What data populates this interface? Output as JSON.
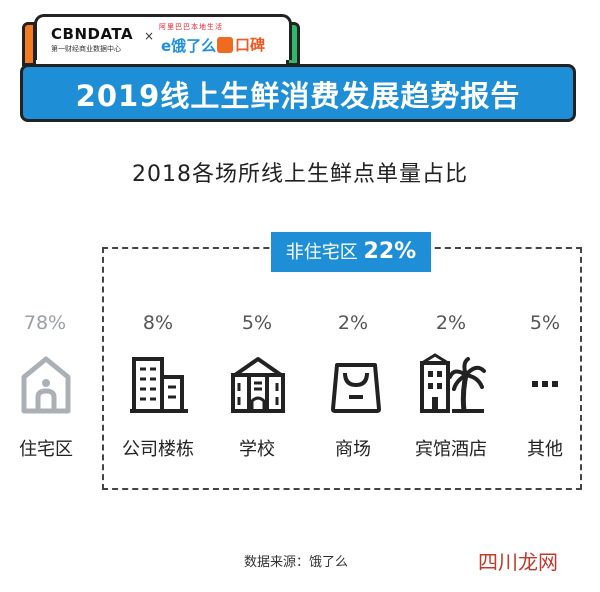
{
  "logo": {
    "cbn_text": "CBNDATA",
    "cbn_sub": "第一财经商业数据中心",
    "cross": "×",
    "alibaba_text": "阿里巴巴本地生活",
    "eleme_text": "e饿了么",
    "koubei_text": "口碑"
  },
  "title": "2019线上生鲜消费发展趋势报告",
  "subtitle": "2018各场所线上生鲜点单量占比",
  "badge": {
    "label": "非住宅区",
    "pct": "22%"
  },
  "categories": [
    {
      "pct": "78%",
      "label": "住宅区",
      "icon": "house-icon"
    },
    {
      "pct": "8%",
      "label": "公司楼栋",
      "icon": "office-building-icon"
    },
    {
      "pct": "5%",
      "label": "学校",
      "icon": "school-icon"
    },
    {
      "pct": "2%",
      "label": "商场",
      "icon": "shopping-bag-icon"
    },
    {
      "pct": "2%",
      "label": "宾馆酒店",
      "icon": "hotel-palm-icon"
    },
    {
      "pct": "5%",
      "label": "其他",
      "icon": "more-dots-icon"
    }
  ],
  "source": "数据来源：饿了么",
  "watermark": "四川龙网"
}
